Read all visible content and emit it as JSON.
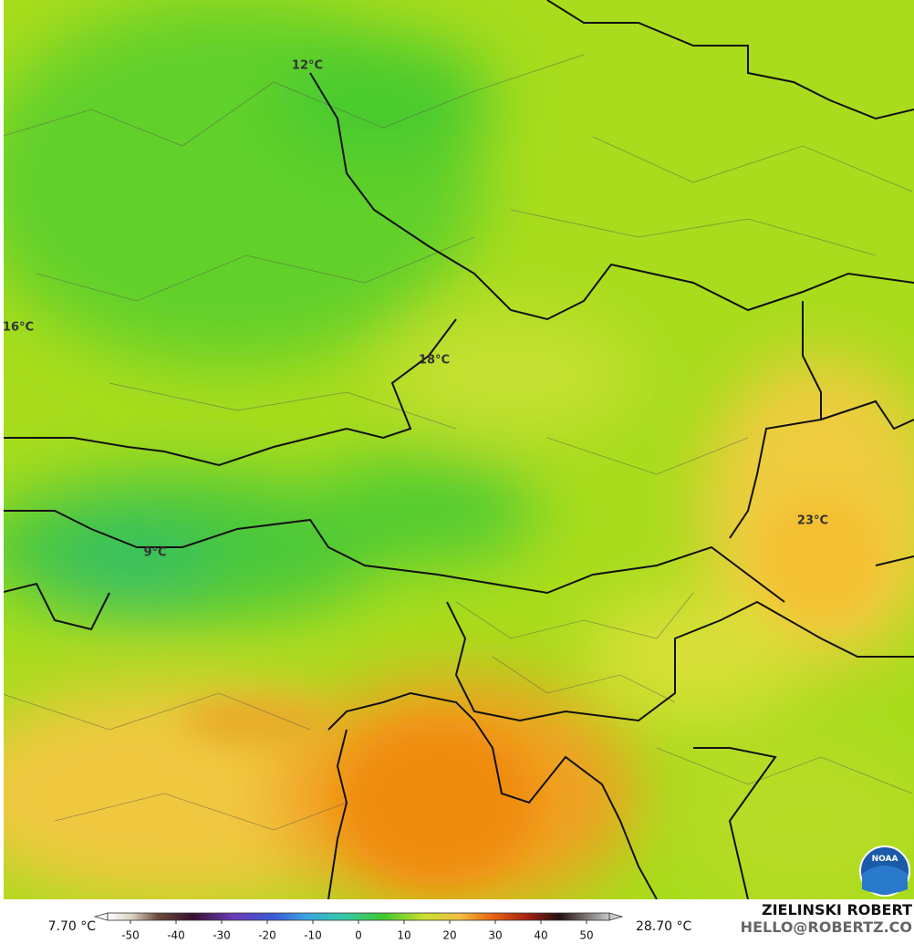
{
  "map": {
    "contour_labels": [
      "12°C",
      "16°C",
      "18°C",
      "9°C",
      "23°C"
    ],
    "colorbar": {
      "min_label": "7.70 °C",
      "max_label": "28.70 °C",
      "lim": [
        -55,
        55
      ],
      "ticks": [
        -50,
        -40,
        -30,
        -20,
        -10,
        0,
        10,
        20,
        30,
        40,
        50
      ]
    },
    "credits": {
      "author": "ZIELINSKI ROBERT",
      "contact": "HELLO@ROBERTZ.CO",
      "logo": "NOAA"
    }
  }
}
